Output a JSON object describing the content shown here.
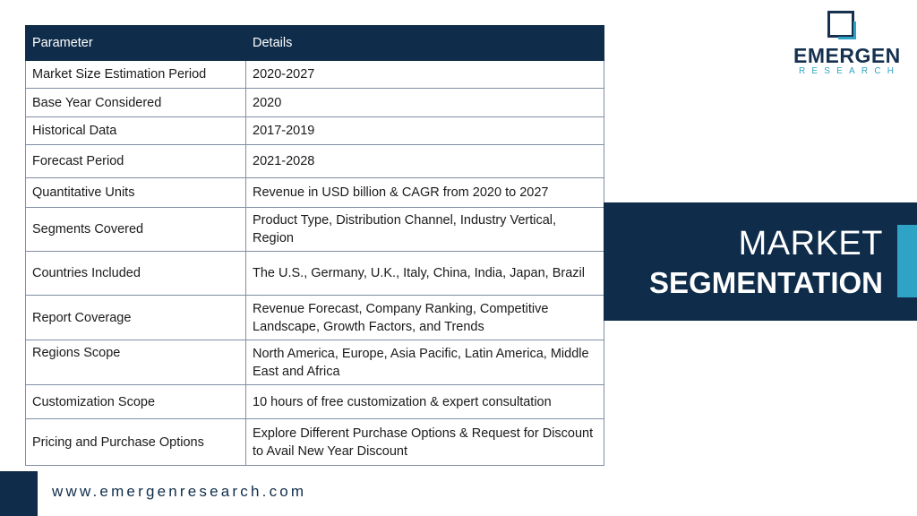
{
  "table": {
    "headers": [
      "Parameter",
      "Details"
    ],
    "rows": [
      [
        "Market Size Estimation Period",
        "2020-2027"
      ],
      [
        "Base Year Considered",
        "2020"
      ],
      [
        "Historical Data",
        "2017-2019"
      ],
      [
        "Forecast Period",
        "2021-2028"
      ],
      [
        "Quantitative Units",
        "Revenue in USD billion & CAGR from 2020 to 2027"
      ],
      [
        "Segments Covered",
        "Product Type, Distribution Channel, Industry Vertical, Region"
      ],
      [
        "Countries Included",
        "The U.S., Germany, U.K., Italy, China, India, Japan, Brazil"
      ],
      [
        "Report Coverage",
        "Revenue Forecast, Company Ranking, Competitive Landscape, Growth Factors, and Trends"
      ],
      [
        "Regions Scope",
        "North America, Europe, Asia Pacific, Latin America, Middle East and Africa"
      ],
      [
        "Customization Scope",
        "10 hours of free customization & expert consultation"
      ],
      [
        "Pricing and Purchase Options",
        "Explore Different Purchase Options & Request for Discount to Avail New Year Discount"
      ]
    ]
  },
  "logo": {
    "name": "EMERGEN",
    "sub": "RESEARCH"
  },
  "banner": {
    "line1": "MARKET",
    "line2": "SEGMENTATION"
  },
  "footer": {
    "url": "www.emergenresearch.com"
  },
  "colors": {
    "navy": "#0f2d4a",
    "accent": "#2fa3c6"
  }
}
